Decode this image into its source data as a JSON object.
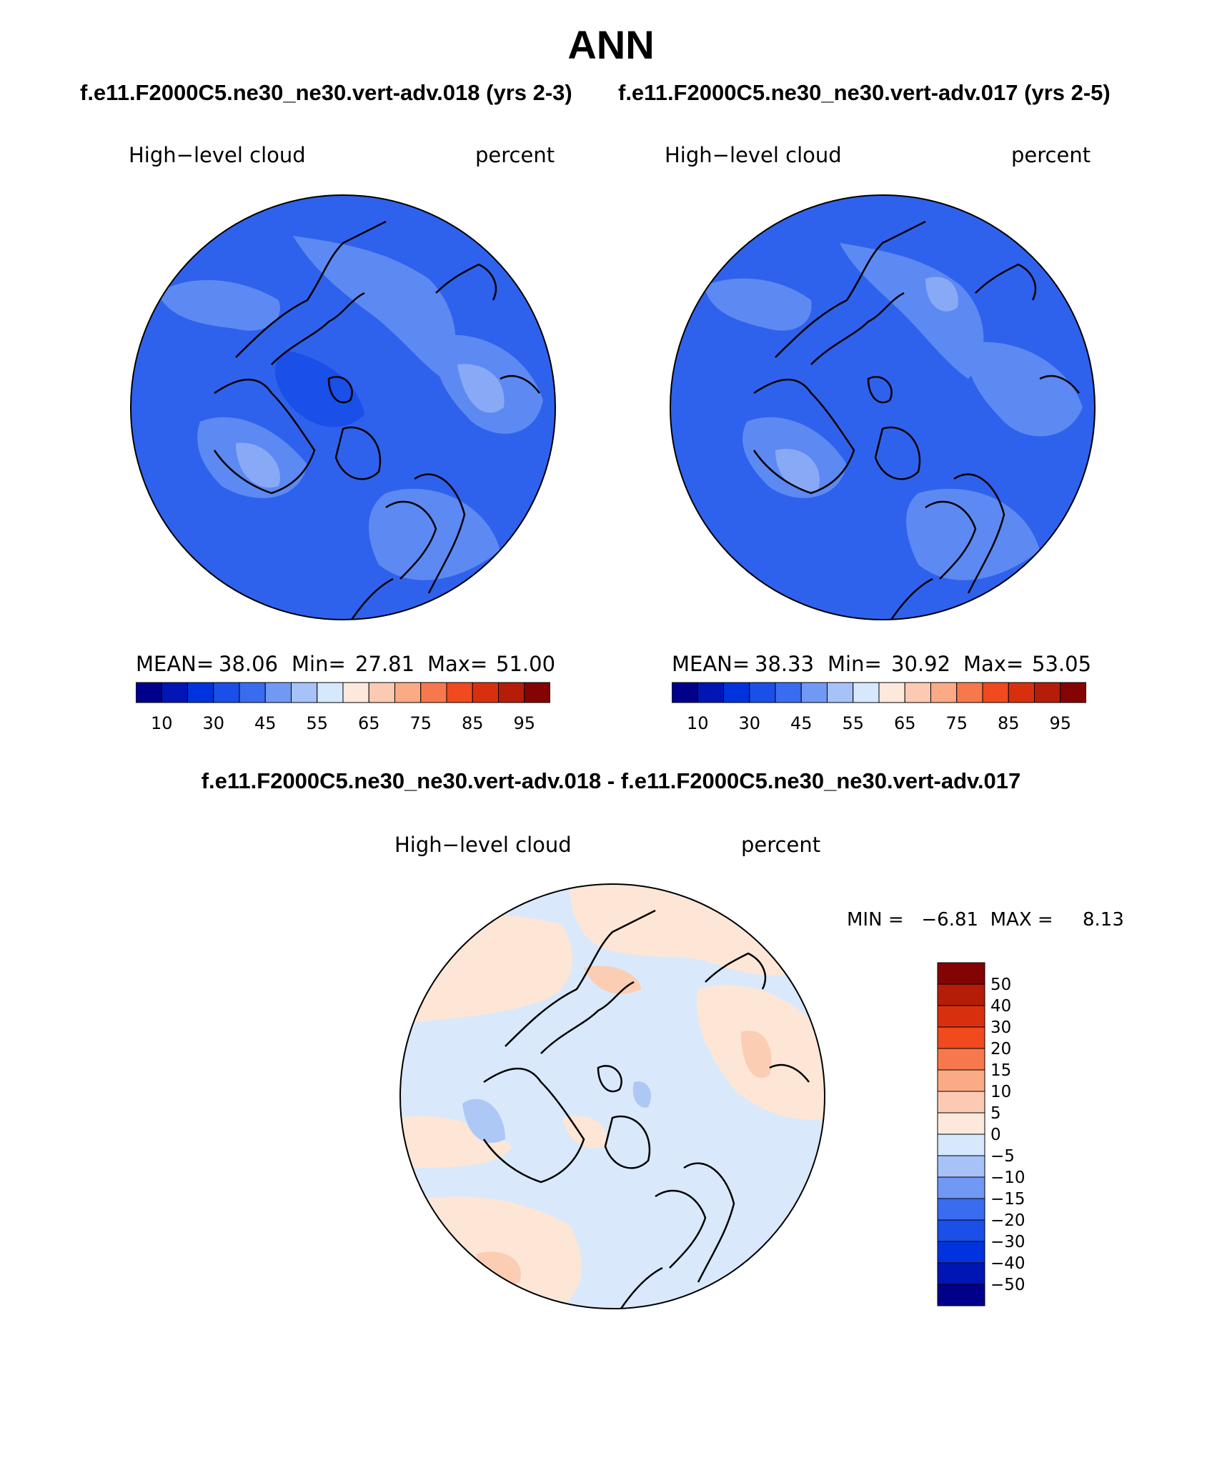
{
  "figure": {
    "title": "ANN",
    "header_left": "f.e11.F2000C5.ne30_ne30.vert-adv.018 (yrs 2-3)",
    "header_right": "f.e11.F2000C5.ne30_ne30.vert-adv.017 (yrs 2-5)",
    "diff_header": "f.e11.F2000C5.ne30_ne30.vert-adv.018 - f.e11.F2000C5.ne30_ne30.vert-adv.017"
  },
  "panels": [
    {
      "variable": "High−level cloud",
      "units": "percent",
      "stats": {
        "mean_label": "MEAN=",
        "mean": "38.06",
        "min_label": "Min=",
        "min": "27.81",
        "max_label": "Max=",
        "max": "51.00"
      }
    },
    {
      "variable": "High−level cloud",
      "units": "percent",
      "stats": {
        "mean_label": "MEAN=",
        "mean": "38.33",
        "min_label": "Min=",
        "min": "30.92",
        "max_label": "Max=",
        "max": "53.05"
      }
    }
  ],
  "diff_panel": {
    "variable": "High−level cloud",
    "units": "percent",
    "minmax_text": "MIN =   −6.81  MAX =     8.13"
  },
  "colorbar_abs": {
    "colors": [
      "#00008b",
      "#0016b4",
      "#0033dd",
      "#1a4fe8",
      "#3a6cf0",
      "#7199f4",
      "#a6c2f7",
      "#d6e8fb",
      "#fde9dc",
      "#fccab2",
      "#fbaa86",
      "#f7784c",
      "#f04a1e",
      "#d8300f",
      "#b51d09",
      "#840404"
    ],
    "labels": [
      "10",
      "30",
      "45",
      "55",
      "65",
      "75",
      "85",
      "95"
    ]
  },
  "colorbar_diff": {
    "colors": [
      "#00008b",
      "#0016b4",
      "#0033dd",
      "#1a4fe8",
      "#3a6cf0",
      "#7199f4",
      "#a6c2f7",
      "#d6e8fb",
      "#fde9dc",
      "#fccab2",
      "#fbaa86",
      "#f7784c",
      "#f04a1e",
      "#d8300f",
      "#b51d09",
      "#840404"
    ],
    "labels": [
      "−50",
      "−40",
      "−30",
      "−20",
      "−15",
      "−10",
      "−5",
      "0",
      "5",
      "10",
      "15",
      "20",
      "30",
      "40",
      "50"
    ]
  },
  "colors": {
    "abs_background": "#2f62ec",
    "abs_dark": "#1a4fe8",
    "abs_light": "#5d89f2",
    "abs_lighter": "#88a9f5",
    "diff_neutral": "#d9e9fb",
    "diff_pos": "#fde6d6",
    "diff_pos_strong": "#fbcdb3",
    "diff_neg": "#aec8f6"
  }
}
